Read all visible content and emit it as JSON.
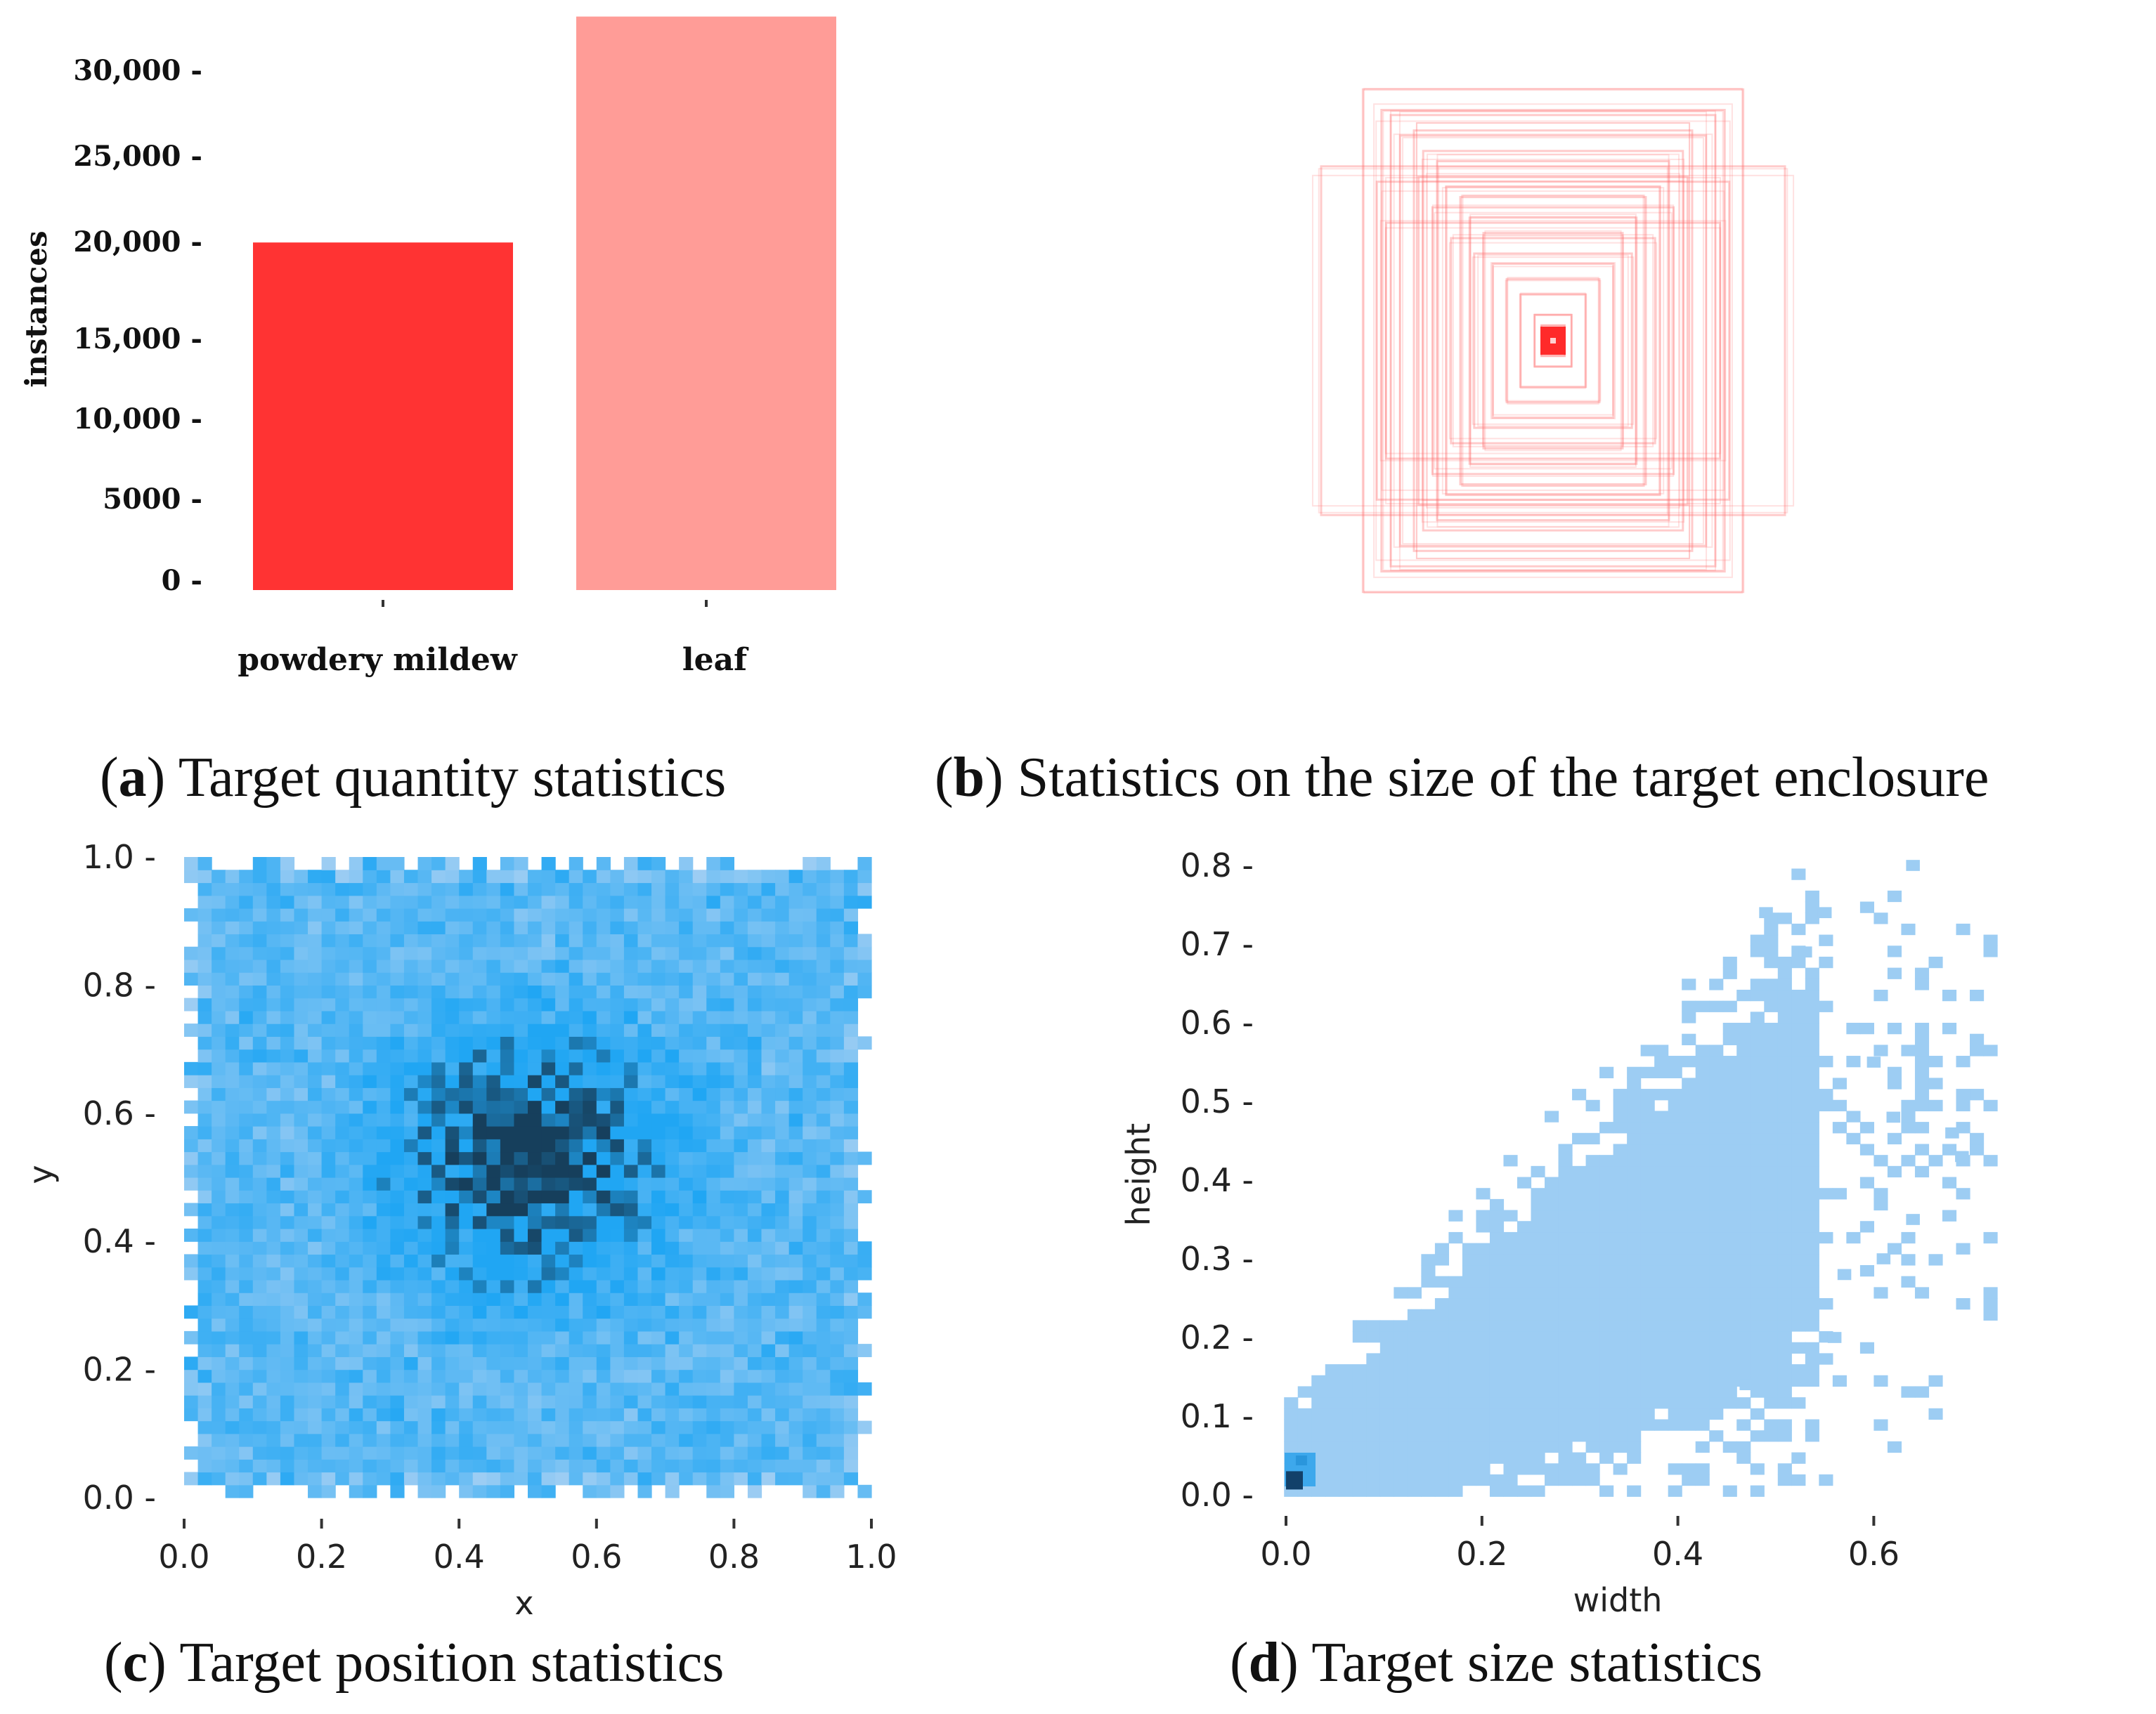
{
  "captions": {
    "a": {
      "letter": "a",
      "text": " Target quantity statistics"
    },
    "b": {
      "letter": "b",
      "text": " Statistics on the size of the target enclosure"
    },
    "c": {
      "letter": "c",
      "text": " Target position statistics"
    },
    "d": {
      "letter": "d",
      "text": " Target size statistics"
    }
  },
  "colors": {
    "bar_mildew": "#ff3333",
    "bar_leaf": "#ff9c97",
    "heat_light": "#9dcdf3",
    "heat_mid": "#20a6f3",
    "heat_dark": "#163f5c",
    "box_stroke": "#ff6b6b"
  },
  "chart_data": [
    {
      "id": "a",
      "type": "bar",
      "title": "Target quantity statistics",
      "categories": [
        "powdery mildew",
        "leaf"
      ],
      "values": [
        20000,
        33000
      ],
      "ylabel": "instances",
      "xlabel": "",
      "yticks": [
        0,
        5000,
        10000,
        15000,
        20000,
        25000,
        30000
      ],
      "ytick_labels": [
        "0",
        "5000",
        "10,000",
        "15,000",
        "20,000",
        "25,000",
        "30,000"
      ],
      "ylim": [
        0,
        33000
      ],
      "grid": false
    },
    {
      "id": "b",
      "type": "scatter",
      "title": "Statistics on the size of the target enclosure",
      "description_note": "overlaid bounding boxes centered at (0.5, 0.5), widths and heights in normalized units",
      "boxes": [
        {
          "w": 0.82,
          "h": 0.98
        },
        {
          "w": 0.74,
          "h": 0.9
        },
        {
          "w": 0.7,
          "h": 0.88
        },
        {
          "w": 1.0,
          "h": 0.68
        },
        {
          "w": 0.6,
          "h": 0.82
        },
        {
          "w": 0.66,
          "h": 0.8
        },
        {
          "w": 0.56,
          "h": 0.74
        },
        {
          "w": 0.76,
          "h": 0.62
        },
        {
          "w": 0.5,
          "h": 0.7
        },
        {
          "w": 0.58,
          "h": 0.64
        },
        {
          "w": 0.46,
          "h": 0.6
        },
        {
          "w": 0.72,
          "h": 0.46
        },
        {
          "w": 0.4,
          "h": 0.56
        },
        {
          "w": 0.52,
          "h": 0.52
        },
        {
          "w": 0.36,
          "h": 0.48
        },
        {
          "w": 0.44,
          "h": 0.4
        },
        {
          "w": 0.3,
          "h": 0.42
        },
        {
          "w": 0.34,
          "h": 0.34
        },
        {
          "w": 0.26,
          "h": 0.3
        },
        {
          "w": 0.2,
          "h": 0.24
        },
        {
          "w": 0.14,
          "h": 0.18
        },
        {
          "w": 0.08,
          "h": 0.1
        },
        {
          "w": 0.05,
          "h": 0.06
        }
      ],
      "grid": false
    },
    {
      "id": "c",
      "type": "heatmap",
      "title": "Target position statistics",
      "xlabel": "x",
      "ylabel": "y",
      "xlim": [
        0.0,
        1.0
      ],
      "ylim": [
        0.0,
        1.0
      ],
      "xticks": [
        0.0,
        0.2,
        0.4,
        0.6,
        0.8,
        1.0
      ],
      "xtick_labels": [
        "0.0",
        "0.2",
        "0.4",
        "0.6",
        "0.8",
        "1.0"
      ],
      "yticks": [
        0.0,
        0.2,
        0.4,
        0.6,
        0.8,
        1.0
      ],
      "ytick_labels": [
        "0.0",
        "0.2",
        "0.4",
        "0.6",
        "0.8",
        "1.0"
      ],
      "bins": 50,
      "peak": {
        "x": 0.5,
        "y": 0.53
      },
      "grid": false
    },
    {
      "id": "d",
      "type": "heatmap",
      "title": "Target size statistics",
      "xlabel": "width",
      "ylabel": "height",
      "xlim": [
        -0.05,
        0.75
      ],
      "ylim": [
        -0.02,
        0.82
      ],
      "xticks": [
        0.0,
        0.2,
        0.4,
        0.6
      ],
      "xtick_labels": [
        "0.0",
        "0.2",
        "0.4",
        "0.6"
      ],
      "yticks": [
        0.0,
        0.1,
        0.2,
        0.3,
        0.4,
        0.5,
        0.6,
        0.7,
        0.8
      ],
      "ytick_labels": [
        "0.0",
        "0.1",
        "0.2",
        "0.3",
        "0.4",
        "0.5",
        "0.6",
        "0.7",
        "0.8"
      ],
      "bin_size": 0.014,
      "peak": {
        "x": 0.01,
        "y": 0.02
      },
      "grid": false
    }
  ]
}
